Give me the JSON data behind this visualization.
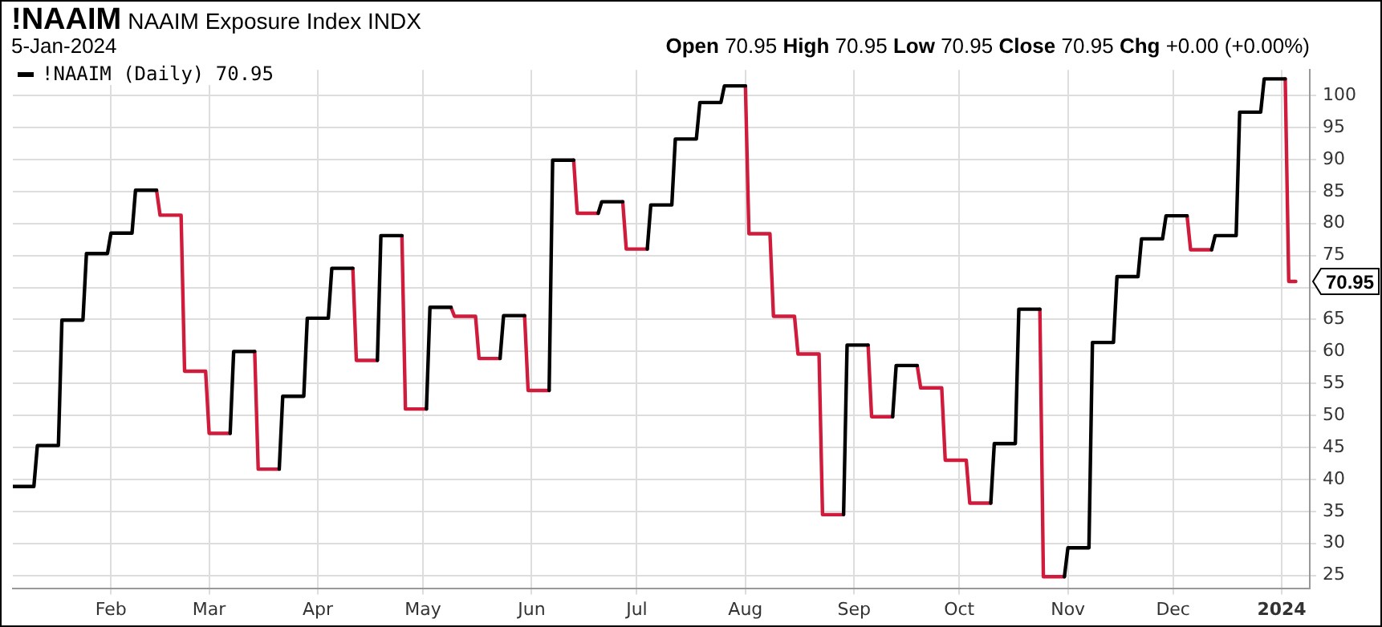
{
  "chart_data": {
    "type": "line",
    "title": "!NAAIM",
    "subtitle": "NAAIM Exposure Index  INDX",
    "annotations": [
      "5-Jan-2024",
      "Open 70.95  High 70.95  Low 70.95  Close 70.95  Chg +0.00 (+0.00%)",
      {
        "text": "70.95",
        "x": "2024-01-05",
        "y": 70.95
      }
    ],
    "series": [
      {
        "name": "!NAAIM (Daily) 70.95",
        "color": "#000000",
        "x": [
          "2023-01-04",
          "2023-01-10",
          "2023-01-11",
          "2023-01-17",
          "2023-01-18",
          "2023-01-24",
          "2023-01-25",
          "2023-01-31",
          "2023-02-01",
          "2023-02-07",
          "2023-02-08",
          "2023-02-14",
          null,
          "2023-03-07",
          "2023-03-08",
          "2023-03-14",
          null,
          "2023-03-21",
          "2023-03-22",
          "2023-03-28",
          "2023-03-29",
          "2023-04-04",
          "2023-04-05",
          "2023-04-11",
          null,
          "2023-04-18",
          "2023-04-19",
          "2023-04-25",
          null,
          "2023-05-02",
          "2023-05-03",
          "2023-05-09",
          null,
          "2023-05-23",
          "2023-05-24",
          "2023-05-30",
          null,
          "2023-06-06",
          "2023-06-07",
          "2023-06-13",
          null,
          "2023-06-20",
          "2023-06-21",
          "2023-06-27",
          null,
          "2023-07-04",
          "2023-07-05",
          "2023-07-11",
          "2023-07-12",
          "2023-07-18",
          "2023-07-19",
          "2023-07-25",
          "2023-07-26",
          "2023-08-01",
          null,
          "2023-08-29",
          "2023-08-30",
          "2023-09-05",
          null,
          "2023-09-12",
          "2023-09-13",
          "2023-09-19",
          null,
          "2023-10-10",
          "2023-10-11",
          "2023-10-17",
          "2023-10-18",
          "2023-10-24",
          null,
          "2023-10-31",
          "2023-11-01",
          "2023-11-07",
          "2023-11-08",
          "2023-11-14",
          "2023-11-15",
          "2023-11-21",
          "2023-11-22",
          "2023-11-28",
          "2023-11-29",
          "2023-12-05",
          null,
          "2023-12-12",
          "2023-12-13",
          "2023-12-19",
          "2023-12-20",
          "2023-12-26",
          "2023-12-27",
          "2024-01-02"
        ],
        "values": [
          38.9,
          38.9,
          45.3,
          45.3,
          64.9,
          64.9,
          75.3,
          75.3,
          78.5,
          78.5,
          85.2,
          85.2,
          null,
          47.2,
          60.0,
          60.0,
          null,
          41.6,
          53.0,
          53.0,
          65.2,
          65.2,
          73.0,
          73.0,
          null,
          58.6,
          78.1,
          78.1,
          null,
          51.0,
          66.9,
          66.9,
          null,
          58.9,
          65.6,
          65.6,
          null,
          53.9,
          89.9,
          89.9,
          null,
          81.6,
          83.4,
          83.4,
          null,
          76.0,
          82.9,
          82.9,
          93.2,
          93.2,
          98.9,
          98.9,
          101.5,
          101.5,
          null,
          34.5,
          61.0,
          61.0,
          null,
          49.8,
          57.8,
          57.8,
          null,
          36.3,
          45.6,
          45.6,
          66.6,
          66.6,
          null,
          24.8,
          29.3,
          29.3,
          61.4,
          61.4,
          71.7,
          71.7,
          77.6,
          77.6,
          81.2,
          81.2,
          null,
          75.9,
          78.1,
          78.1,
          97.4,
          97.4,
          102.6,
          102.6
        ]
      },
      {
        "color": "#d01c3c",
        "x": [
          "2023-02-14",
          "2023-02-15",
          "2023-02-21",
          "2023-02-22",
          "2023-02-28",
          "2023-03-01",
          "2023-03-07",
          null,
          "2023-03-14",
          "2023-03-15",
          "2023-03-21",
          null,
          "2023-04-11",
          "2023-04-12",
          "2023-04-18",
          null,
          "2023-04-25",
          "2023-04-26",
          "2023-05-02",
          null,
          "2023-05-09",
          "2023-05-10",
          "2023-05-16",
          "2023-05-17",
          "2023-05-23",
          null,
          "2023-05-30",
          "2023-05-31",
          "2023-06-06",
          null,
          "2023-06-13",
          "2023-06-14",
          "2023-06-20",
          null,
          "2023-06-27",
          "2023-06-28",
          "2023-07-04",
          null,
          "2023-08-01",
          "2023-08-02",
          "2023-08-08",
          "2023-08-09",
          "2023-08-15",
          "2023-08-16",
          "2023-08-22",
          "2023-08-23",
          "2023-08-29",
          null,
          "2023-09-05",
          "2023-09-06",
          "2023-09-12",
          null,
          "2023-09-19",
          "2023-09-20",
          "2023-09-26",
          "2023-09-27",
          "2023-10-03",
          "2023-10-04",
          "2023-10-10",
          null,
          "2023-10-24",
          "2023-10-25",
          "2023-10-31",
          null,
          "2023-12-05",
          "2023-12-06",
          "2023-12-12",
          null,
          "2024-01-02",
          "2024-01-03",
          "2024-01-05"
        ],
        "values": [
          85.2,
          81.3,
          81.3,
          56.9,
          56.9,
          47.2,
          47.2,
          null,
          60.0,
          41.6,
          41.6,
          null,
          73.0,
          58.6,
          58.6,
          null,
          78.1,
          51.0,
          51.0,
          null,
          66.9,
          65.5,
          65.5,
          58.9,
          58.9,
          null,
          65.6,
          53.9,
          53.9,
          null,
          89.9,
          81.6,
          81.6,
          null,
          83.4,
          76.0,
          76.0,
          null,
          101.5,
          78.4,
          78.4,
          65.5,
          65.5,
          59.6,
          59.6,
          34.5,
          34.5,
          null,
          61.0,
          49.8,
          49.8,
          null,
          57.8,
          54.3,
          54.3,
          43.0,
          43.0,
          36.3,
          36.3,
          null,
          66.6,
          24.8,
          24.8,
          null,
          81.2,
          75.9,
          75.9,
          null,
          102.6,
          70.95,
          70.95
        ]
      }
    ],
    "xlim": [
      "2023-01-04",
      "2024-01-09"
    ],
    "xticks": [
      {
        "value": "2023-02-01",
        "label": "Feb"
      },
      {
        "value": "2023-03-01",
        "label": "Mar"
      },
      {
        "value": "2023-04-01",
        "label": "Apr"
      },
      {
        "value": "2023-05-01",
        "label": "May"
      },
      {
        "value": "2023-06-01",
        "label": "Jun"
      },
      {
        "value": "2023-07-01",
        "label": "Jul"
      },
      {
        "value": "2023-08-01",
        "label": "Aug"
      },
      {
        "value": "2023-09-01",
        "label": "Sep"
      },
      {
        "value": "2023-10-01",
        "label": "Oct"
      },
      {
        "value": "2023-11-01",
        "label": "Nov"
      },
      {
        "value": "2023-12-01",
        "label": "Dec"
      },
      {
        "value": "2024-01-01",
        "label": "2024"
      }
    ],
    "ylim": [
      23,
      104
    ],
    "yticks": [
      25,
      30,
      35,
      40,
      45,
      50,
      55,
      60,
      65,
      {
        "value": 70,
        "label": null
      },
      75,
      80,
      85,
      90,
      95,
      100
    ],
    "grid": true,
    "legend": "top left",
    "line_style": "solid",
    "marker": "none"
  }
}
